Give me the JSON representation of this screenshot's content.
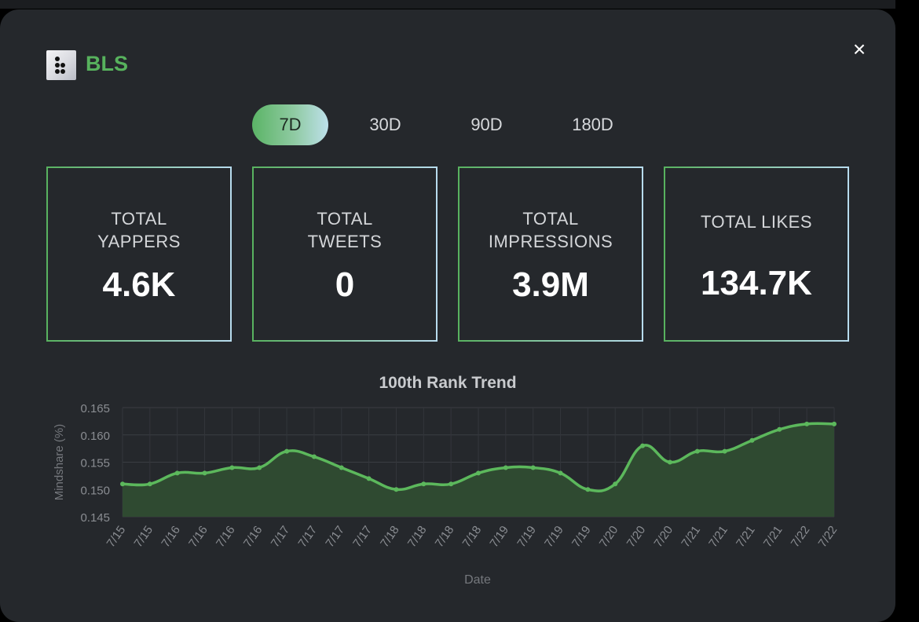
{
  "header": {
    "title": "BLS",
    "logo_icon": "bls-logo-icon",
    "close_icon": "close-icon",
    "close_glyph": "×"
  },
  "tabs": [
    {
      "label": "7D",
      "active": true
    },
    {
      "label": "30D",
      "active": false
    },
    {
      "label": "90D",
      "active": false
    },
    {
      "label": "180D",
      "active": false
    }
  ],
  "stats": [
    {
      "label": "TOTAL\nYAPPERS",
      "value": "4.6K"
    },
    {
      "label": "TOTAL\nTWEETS",
      "value": "0"
    },
    {
      "label": "TOTAL\nIMPRESSIONS",
      "value": "3.9M"
    },
    {
      "label": "TOTAL LIKES",
      "value": "134.7K"
    }
  ],
  "colors": {
    "accent": "#57b25d",
    "border_gradient_start": "#58b25f",
    "border_gradient_end": "#b8dcef",
    "panel_bg": "#25282c"
  },
  "chart_data": {
    "type": "area",
    "title": "100th Rank Trend",
    "xlabel": "Date",
    "ylabel": "Mindshare (%)",
    "ylim": [
      0.145,
      0.165
    ],
    "yticks": [
      "0.165",
      "0.160",
      "0.155",
      "0.150",
      "0.145"
    ],
    "grid": true,
    "categories": [
      "7/15",
      "7/15",
      "7/16",
      "7/16",
      "7/16",
      "7/16",
      "7/17",
      "7/17",
      "7/17",
      "7/17",
      "7/18",
      "7/18",
      "7/18",
      "7/18",
      "7/19",
      "7/19",
      "7/19",
      "7/19",
      "7/20",
      "7/20",
      "7/20",
      "7/21",
      "7/21",
      "7/21",
      "7/21",
      "7/22",
      "7/22"
    ],
    "series": [
      {
        "values": [
          0.151,
          0.151,
          0.153,
          0.153,
          0.154,
          0.154,
          0.157,
          0.156,
          0.154,
          0.152,
          0.15,
          0.151,
          0.151,
          0.153,
          0.154,
          0.154,
          0.153,
          0.15,
          0.151,
          0.158,
          0.155,
          0.157,
          0.157,
          0.159,
          0.161,
          0.162,
          0.162
        ],
        "color": "#5cb85c",
        "fill": "#2f4a31"
      }
    ]
  }
}
